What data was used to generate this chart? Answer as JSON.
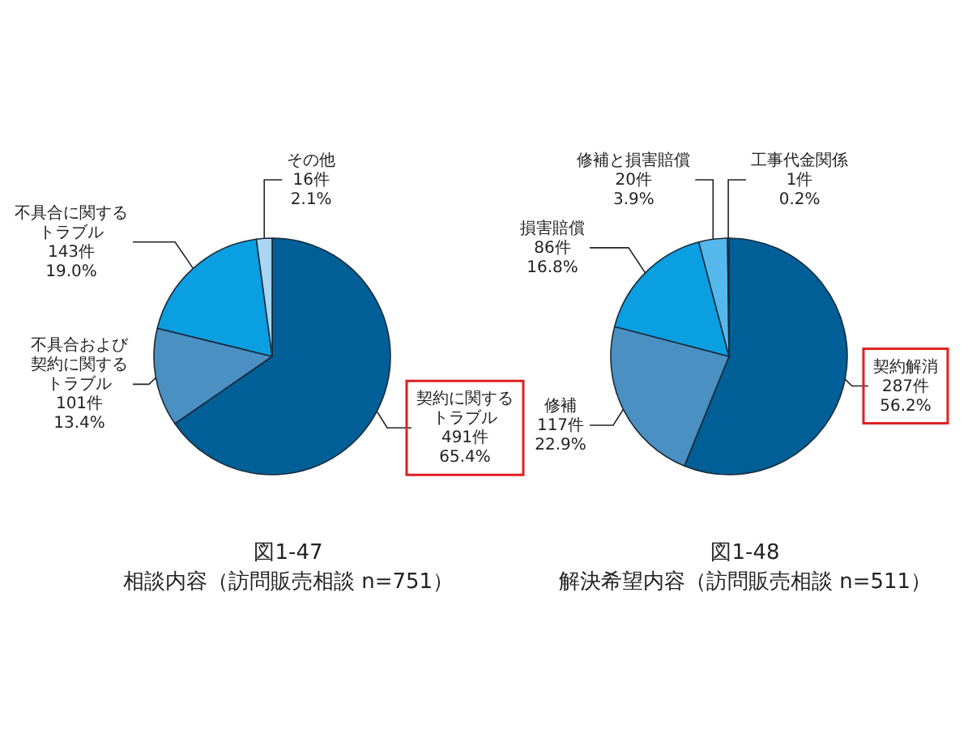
{
  "chart_data": [
    {
      "type": "pie",
      "title": "図1-47",
      "subtitle": "相談内容（訪問販売相談 n=751）",
      "categories": [
        "契約に関するトラブル",
        "不具合および契約に関するトラブル",
        "不具合に関するトラブル",
        "その他"
      ],
      "values": [
        491,
        101,
        143,
        16
      ],
      "value_labels": [
        "491件\n65.4%",
        "101件\n13.4%",
        "143件\n19.0%",
        "16件\n2.1%"
      ],
      "colors": [
        "#005f96",
        "#4a90c2",
        "#0a9fe0",
        "#a9d6f2"
      ],
      "legend": false
    },
    {
      "type": "pie",
      "title": "図1-48",
      "subtitle": "解決希望内容（訪問販売相談 n=511）",
      "categories": [
        "契約解消",
        "修補",
        "損害賠償",
        "修補と損害賠償",
        "工事代金関係"
      ],
      "values": [
        287,
        117,
        86,
        20,
        1
      ],
      "value_labels": [
        "287件\n56.2%",
        "117件\n22.9%",
        "86件\n16.8%",
        "20件\n3.9%",
        "1件\n0.2%"
      ],
      "colors": [
        "#005f96",
        "#4a90c2",
        "#0a9fe0",
        "#55b8ec",
        "#a9d6f2"
      ],
      "legend": false
    }
  ]
}
